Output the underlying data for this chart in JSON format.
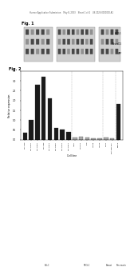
{
  "header_text": "Human Application Submission    May 8, 2023    Sheet 1 of 4    US 2023/0000000 A1",
  "fig1_label": "Fig. 1",
  "fig2_label": "Fig. 2",
  "blot_bg": "#d0d0d0",
  "blot_band_color": "#303030",
  "bar_categories": [
    "NCI-H69",
    "NCI-H146",
    "NCI-H526",
    "NCI-H82",
    "NCI-H524",
    "NCI-H187",
    "NCI-H209",
    "NCI-H211",
    "A549",
    "HCC827",
    "PC9",
    "H1975",
    "H1650",
    "MCF7",
    "MDA-MB-231",
    "BxPC3"
  ],
  "bar_values": [
    0.35,
    1.0,
    2.8,
    3.2,
    2.1,
    0.6,
    0.5,
    0.4,
    0.12,
    0.15,
    0.1,
    0.08,
    0.09,
    0.1,
    0.08,
    1.8
  ],
  "bar_colors_list": [
    "#1a1a1a",
    "#1a1a1a",
    "#1a1a1a",
    "#1a1a1a",
    "#1a1a1a",
    "#1a1a1a",
    "#1a1a1a",
    "#1a1a1a",
    "#aaaaaa",
    "#aaaaaa",
    "#aaaaaa",
    "#aaaaaa",
    "#aaaaaa",
    "#aaaaaa",
    "#aaaaaa",
    "#1a1a1a"
  ],
  "ylabel": "Relative expression",
  "xlabel_label": "Cell line",
  "ylim": [
    0,
    3.5
  ],
  "yticks": [
    0,
    0.5,
    1.0,
    1.5,
    2.0,
    2.5,
    3.0,
    3.5
  ],
  "background_color": "#ffffff"
}
